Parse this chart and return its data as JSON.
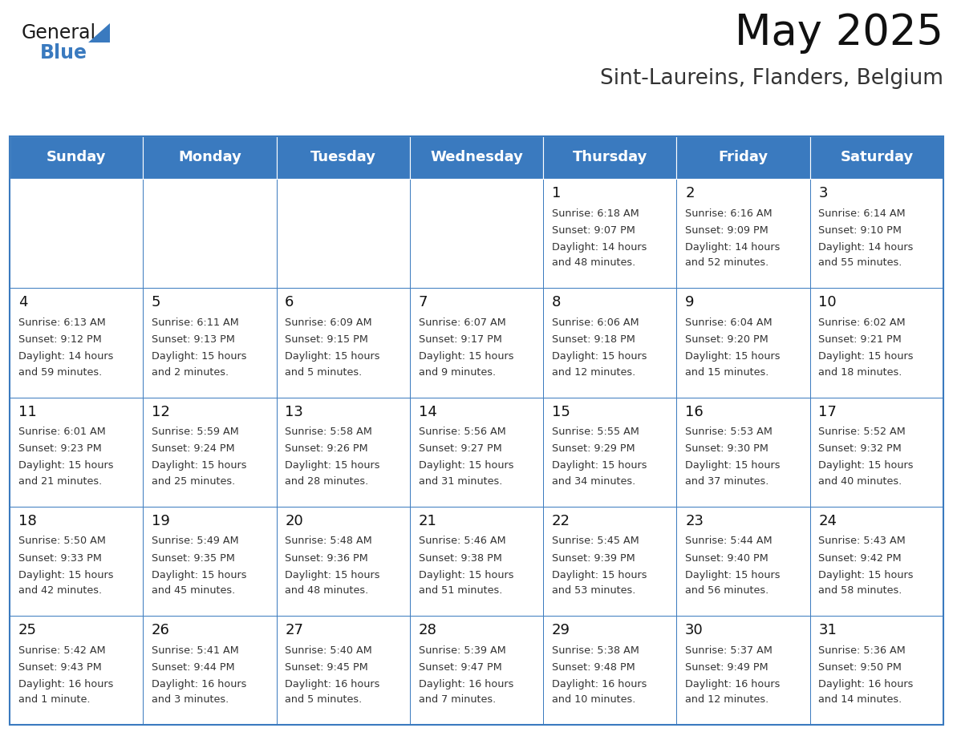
{
  "title": "May 2025",
  "subtitle": "Sint-Laureins, Flanders, Belgium",
  "days_of_week": [
    "Sunday",
    "Monday",
    "Tuesday",
    "Wednesday",
    "Thursday",
    "Friday",
    "Saturday"
  ],
  "header_bg": "#3a7abf",
  "header_text": "#ffffff",
  "border_color": "#3a7abf",
  "text_color": "#333333",
  "day_number_color": "#222222",
  "calendar_data": [
    [
      null,
      null,
      null,
      null,
      {
        "day": 1,
        "sunrise": "6:18 AM",
        "sunset": "9:07 PM",
        "daylight": "14 hours and 48 minutes."
      },
      {
        "day": 2,
        "sunrise": "6:16 AM",
        "sunset": "9:09 PM",
        "daylight": "14 hours and 52 minutes."
      },
      {
        "day": 3,
        "sunrise": "6:14 AM",
        "sunset": "9:10 PM",
        "daylight": "14 hours and 55 minutes."
      }
    ],
    [
      {
        "day": 4,
        "sunrise": "6:13 AM",
        "sunset": "9:12 PM",
        "daylight": "14 hours and 59 minutes."
      },
      {
        "day": 5,
        "sunrise": "6:11 AM",
        "sunset": "9:13 PM",
        "daylight": "15 hours and 2 minutes."
      },
      {
        "day": 6,
        "sunrise": "6:09 AM",
        "sunset": "9:15 PM",
        "daylight": "15 hours and 5 minutes."
      },
      {
        "day": 7,
        "sunrise": "6:07 AM",
        "sunset": "9:17 PM",
        "daylight": "15 hours and 9 minutes."
      },
      {
        "day": 8,
        "sunrise": "6:06 AM",
        "sunset": "9:18 PM",
        "daylight": "15 hours and 12 minutes."
      },
      {
        "day": 9,
        "sunrise": "6:04 AM",
        "sunset": "9:20 PM",
        "daylight": "15 hours and 15 minutes."
      },
      {
        "day": 10,
        "sunrise": "6:02 AM",
        "sunset": "9:21 PM",
        "daylight": "15 hours and 18 minutes."
      }
    ],
    [
      {
        "day": 11,
        "sunrise": "6:01 AM",
        "sunset": "9:23 PM",
        "daylight": "15 hours and 21 minutes."
      },
      {
        "day": 12,
        "sunrise": "5:59 AM",
        "sunset": "9:24 PM",
        "daylight": "15 hours and 25 minutes."
      },
      {
        "day": 13,
        "sunrise": "5:58 AM",
        "sunset": "9:26 PM",
        "daylight": "15 hours and 28 minutes."
      },
      {
        "day": 14,
        "sunrise": "5:56 AM",
        "sunset": "9:27 PM",
        "daylight": "15 hours and 31 minutes."
      },
      {
        "day": 15,
        "sunrise": "5:55 AM",
        "sunset": "9:29 PM",
        "daylight": "15 hours and 34 minutes."
      },
      {
        "day": 16,
        "sunrise": "5:53 AM",
        "sunset": "9:30 PM",
        "daylight": "15 hours and 37 minutes."
      },
      {
        "day": 17,
        "sunrise": "5:52 AM",
        "sunset": "9:32 PM",
        "daylight": "15 hours and 40 minutes."
      }
    ],
    [
      {
        "day": 18,
        "sunrise": "5:50 AM",
        "sunset": "9:33 PM",
        "daylight": "15 hours and 42 minutes."
      },
      {
        "day": 19,
        "sunrise": "5:49 AM",
        "sunset": "9:35 PM",
        "daylight": "15 hours and 45 minutes."
      },
      {
        "day": 20,
        "sunrise": "5:48 AM",
        "sunset": "9:36 PM",
        "daylight": "15 hours and 48 minutes."
      },
      {
        "day": 21,
        "sunrise": "5:46 AM",
        "sunset": "9:38 PM",
        "daylight": "15 hours and 51 minutes."
      },
      {
        "day": 22,
        "sunrise": "5:45 AM",
        "sunset": "9:39 PM",
        "daylight": "15 hours and 53 minutes."
      },
      {
        "day": 23,
        "sunrise": "5:44 AM",
        "sunset": "9:40 PM",
        "daylight": "15 hours and 56 minutes."
      },
      {
        "day": 24,
        "sunrise": "5:43 AM",
        "sunset": "9:42 PM",
        "daylight": "15 hours and 58 minutes."
      }
    ],
    [
      {
        "day": 25,
        "sunrise": "5:42 AM",
        "sunset": "9:43 PM",
        "daylight": "16 hours and 1 minute."
      },
      {
        "day": 26,
        "sunrise": "5:41 AM",
        "sunset": "9:44 PM",
        "daylight": "16 hours and 3 minutes."
      },
      {
        "day": 27,
        "sunrise": "5:40 AM",
        "sunset": "9:45 PM",
        "daylight": "16 hours and 5 minutes."
      },
      {
        "day": 28,
        "sunrise": "5:39 AM",
        "sunset": "9:47 PM",
        "daylight": "16 hours and 7 minutes."
      },
      {
        "day": 29,
        "sunrise": "5:38 AM",
        "sunset": "9:48 PM",
        "daylight": "16 hours and 10 minutes."
      },
      {
        "day": 30,
        "sunrise": "5:37 AM",
        "sunset": "9:49 PM",
        "daylight": "16 hours and 12 minutes."
      },
      {
        "day": 31,
        "sunrise": "5:36 AM",
        "sunset": "9:50 PM",
        "daylight": "16 hours and 14 minutes."
      }
    ]
  ]
}
